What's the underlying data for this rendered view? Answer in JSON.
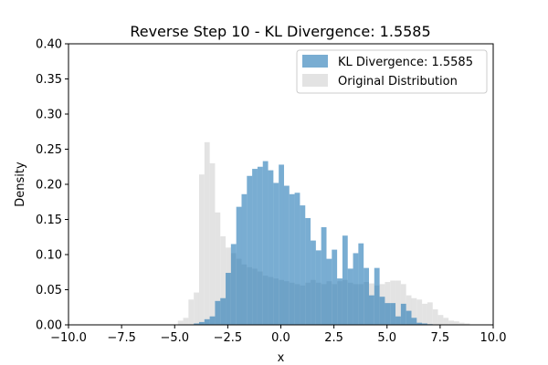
{
  "chart_data": {
    "type": "bar",
    "title": "Reverse Step 10 - KL Divergence: 1.5585",
    "xlabel": "x",
    "ylabel": "Density",
    "xlim": [
      -10,
      10
    ],
    "ylim": [
      0,
      0.4
    ],
    "xticks": [
      -10,
      -7.5,
      -5,
      -2.5,
      0,
      2.5,
      5,
      7.5,
      10
    ],
    "xtick_labels": [
      "−10.0",
      "−7.5",
      "−5.0",
      "−2.5",
      "0.0",
      "2.5",
      "5.0",
      "7.5",
      "10.0"
    ],
    "yticks": [
      0,
      0.05,
      0.1,
      0.15,
      0.2,
      0.25,
      0.3,
      0.35,
      0.4
    ],
    "ytick_labels": [
      "0.00",
      "0.05",
      "0.10",
      "0.15",
      "0.20",
      "0.25",
      "0.30",
      "0.35",
      "0.40"
    ],
    "legend_position": "top-right",
    "grid": false,
    "series": [
      {
        "name": "Original Distribution",
        "color": "#d9d9d9",
        "opacity": 0.75,
        "bin_start": -4.85,
        "bin_width": 0.25,
        "values": [
          0.006,
          0.01,
          0.036,
          0.046,
          0.214,
          0.26,
          0.23,
          0.16,
          0.126,
          0.11,
          0.102,
          0.094,
          0.086,
          0.082,
          0.08,
          0.076,
          0.07,
          0.068,
          0.066,
          0.064,
          0.062,
          0.06,
          0.058,
          0.056,
          0.06,
          0.064,
          0.06,
          0.058,
          0.062,
          0.058,
          0.062,
          0.064,
          0.06,
          0.058,
          0.058,
          0.061,
          0.059,
          0.056,
          0.058,
          0.061,
          0.063,
          0.063,
          0.058,
          0.042,
          0.038,
          0.036,
          0.03,
          0.032,
          0.022,
          0.014,
          0.01,
          0.006,
          0.005,
          0.003,
          0.002
        ]
      },
      {
        "name": "KL Divergence: 1.5585",
        "color": "#1f77b4",
        "opacity": 0.6,
        "bin_start": -4.1,
        "bin_width": 0.25,
        "values": [
          0.002,
          0.004,
          0.008,
          0.012,
          0.034,
          0.038,
          0.074,
          0.115,
          0.168,
          0.186,
          0.212,
          0.222,
          0.225,
          0.233,
          0.22,
          0.202,
          0.228,
          0.198,
          0.186,
          0.188,
          0.17,
          0.152,
          0.12,
          0.106,
          0.139,
          0.094,
          0.107,
          0.066,
          0.127,
          0.08,
          0.102,
          0.116,
          0.081,
          0.042,
          0.081,
          0.04,
          0.031,
          0.031,
          0.012,
          0.03,
          0.02,
          0.01,
          0.003,
          0.002,
          0.001
        ]
      }
    ]
  }
}
